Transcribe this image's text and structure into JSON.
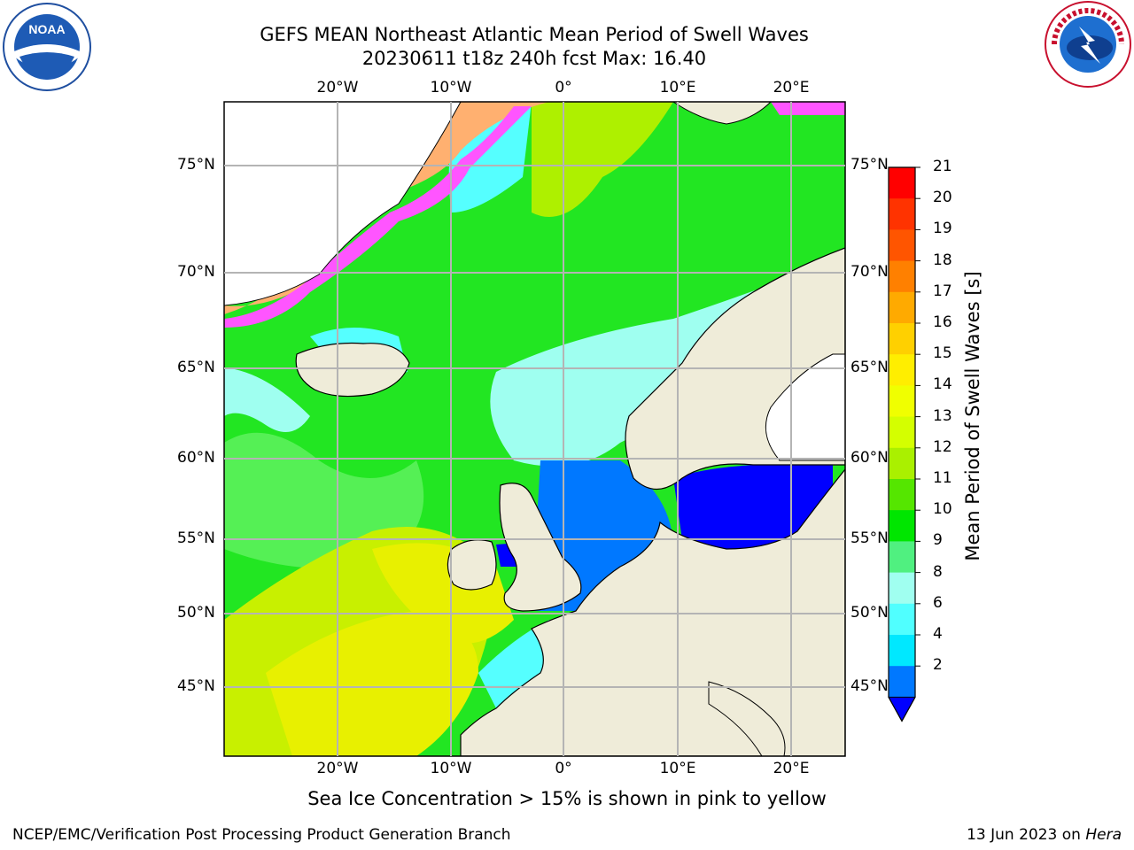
{
  "header": {
    "title_line1": "GEFS MEAN Northeast Atlantic Mean Period of Swell Waves",
    "title_line2": "20230611 t18z 240h fcst   Max: 16.40"
  },
  "logos": {
    "left": "NOAA",
    "right": "NATIONAL WEATHER SERVICE"
  },
  "map": {
    "lon_ticks": [
      "20°W",
      "10°W",
      "0°",
      "10°E",
      "20°E"
    ],
    "lat_ticks": [
      "75°N",
      "70°N",
      "65°N",
      "60°N",
      "55°N",
      "50°N",
      "45°N"
    ],
    "ocean_color": "#22e622",
    "land_color": "#efecd9",
    "ice_colors": [
      "#ff55ff",
      "#ffb070",
      "#ffe070"
    ]
  },
  "colorbar": {
    "label": "Mean Period of Swell Waves [s]",
    "ticks": [
      "21",
      "20",
      "19",
      "18",
      "17",
      "16",
      "15",
      "14",
      "13",
      "12",
      "11",
      "10",
      "9",
      "8",
      "6",
      "4",
      "2"
    ],
    "colors": [
      "#ff0000",
      "#ff3300",
      "#ff5500",
      "#ff8000",
      "#ffaa00",
      "#ffd000",
      "#ffee00",
      "#f0ff00",
      "#d4ff00",
      "#aaf000",
      "#55e600",
      "#00e600",
      "#50f080",
      "#a0fff0",
      "#50ffff",
      "#00e8ff",
      "#0078ff"
    ],
    "extend_color": "#0000ff"
  },
  "footnote": "Sea Ice Concentration > 15% is shown in pink to yellow",
  "footer": {
    "left": "NCEP/EMC/Verification Post Processing Product Generation Branch",
    "right_prefix": "13 Jun 2023 on ",
    "right_host": "Hera"
  }
}
